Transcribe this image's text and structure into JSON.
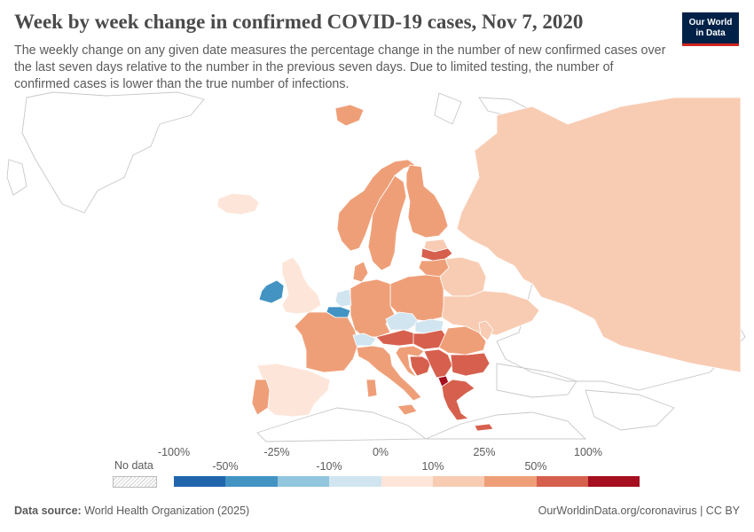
{
  "title": "Week by week change in confirmed COVID-19 cases, Nov 7, 2020",
  "subtitle": "The weekly change on any given date measures the percentage change in the number of new confirmed cases over the last seven days relative to the number in the previous seven days. Due to limited testing, the number of confirmed cases is lower than the true number of infections.",
  "logo": {
    "line1": "Our World",
    "line2": "in Data"
  },
  "legend": {
    "no_data_label": "No data",
    "ticks_top": [
      "-100%",
      "-25%",
      "0%",
      "25%",
      "100%"
    ],
    "ticks_bottom": [
      "-50%",
      "-10%",
      "10%",
      "50%"
    ],
    "colors": [
      "#2166ac",
      "#4393c3",
      "#92c5de",
      "#d1e5f0",
      "#fde6d9",
      "#f8ccb3",
      "#ef9f78",
      "#d6604d",
      "#a60f1f"
    ]
  },
  "regions": [
    {
      "name": "Russia",
      "bin": 5
    },
    {
      "name": "Ireland",
      "bin": 1
    },
    {
      "name": "United Kingdom",
      "bin": 4
    },
    {
      "name": "Belgium",
      "bin": 1
    },
    {
      "name": "Netherlands",
      "bin": 3
    },
    {
      "name": "France",
      "bin": 6
    },
    {
      "name": "Germany",
      "bin": 6
    },
    {
      "name": "Spain",
      "bin": 4
    },
    {
      "name": "Portugal",
      "bin": 6
    },
    {
      "name": "Italy",
      "bin": 6
    },
    {
      "name": "Switzerland",
      "bin": 3
    },
    {
      "name": "Austria",
      "bin": 7
    },
    {
      "name": "Czechia",
      "bin": 3
    },
    {
      "name": "Slovakia",
      "bin": 3
    },
    {
      "name": "Poland",
      "bin": 6
    },
    {
      "name": "Hungary",
      "bin": 7
    },
    {
      "name": "Romania",
      "bin": 6
    },
    {
      "name": "Bulgaria",
      "bin": 7
    },
    {
      "name": "Serbia",
      "bin": 7
    },
    {
      "name": "Kosovo",
      "bin": 8
    },
    {
      "name": "Greece",
      "bin": 7
    },
    {
      "name": "Ukraine",
      "bin": 5
    },
    {
      "name": "Belarus",
      "bin": 5
    },
    {
      "name": "Lithuania",
      "bin": 6
    },
    {
      "name": "Latvia",
      "bin": 7
    },
    {
      "name": "Estonia",
      "bin": 5
    },
    {
      "name": "Finland",
      "bin": 6
    },
    {
      "name": "Sweden",
      "bin": 6
    },
    {
      "name": "Norway",
      "bin": 6
    },
    {
      "name": "Iceland",
      "bin": 4
    },
    {
      "name": "Denmark",
      "bin": 6
    },
    {
      "name": "Croatia",
      "bin": 6
    },
    {
      "name": "Bosnia and Herzegovina",
      "bin": 7
    },
    {
      "name": "Moldova",
      "bin": 5
    },
    {
      "name": "Svalbard",
      "bin": 6
    }
  ],
  "footer": {
    "source_label": "Data source:",
    "source_text": "World Health Organization (2025)",
    "right_text": "OurWorldinData.org/coronavirus | CC BY"
  }
}
